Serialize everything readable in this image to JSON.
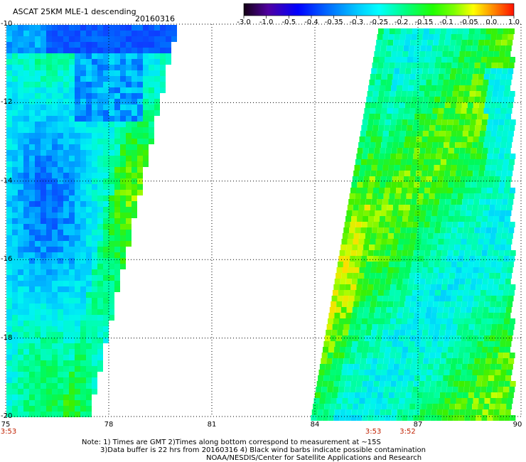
{
  "header": {
    "title": "ASCAT 25KM MLE-1 descending",
    "date": "20160316"
  },
  "colorbar": {
    "labels": [
      "-3.0",
      "-1.0",
      "-0.5",
      "-0.4",
      "-0.35",
      "-0.3",
      "-0.25",
      "-0.2",
      "-0.15",
      "-0.1",
      "-0.05",
      "0.0",
      "1.0"
    ],
    "colors": [
      "#140014",
      "#7000b0",
      "#2000ff",
      "#0058ff",
      "#00b8ff",
      "#00f0ff",
      "#00ffb0",
      "#00ff40",
      "#50ff00",
      "#b0ff00",
      "#ffff00",
      "#ff9000",
      "#ff2000"
    ]
  },
  "map": {
    "lat_labels": [
      "-10",
      "-12",
      "-14",
      "-16",
      "-18",
      "-20"
    ],
    "lon_labels": [
      "75",
      "78",
      "81",
      "84",
      "87",
      "90"
    ],
    "lat_range": [
      -20,
      -10
    ],
    "lon_range": [
      75,
      90
    ],
    "times": [
      {
        "label": "3:53",
        "lon": 75
      },
      {
        "label": "3:53",
        "lon": 85.7
      },
      {
        "label": "3:52",
        "lon": 86.7
      }
    ]
  },
  "notes": {
    "line1": "Note: 1) Times are GMT 2)Times along bottom correspond to measurement at ~15S",
    "line2": "3)Data buffer is 22 hrs from 20160316 4) Black wind barbs indicate possible contamination",
    "line3": "NOAA/NESDIS/Center for Satellite Applications and Research"
  }
}
